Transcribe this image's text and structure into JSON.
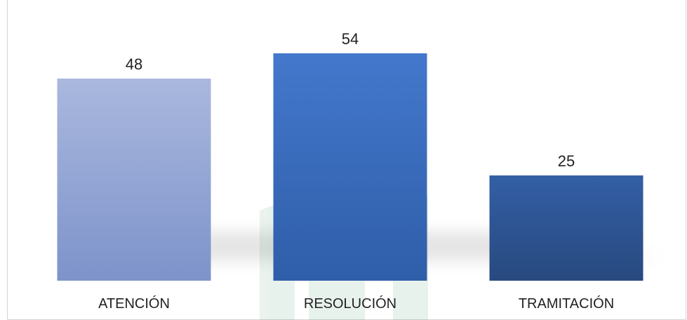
{
  "chart_data": {
    "type": "bar",
    "title": "",
    "categories": [
      "ATENCIÓN",
      "RESOLUCIÓN",
      "TRAMITACIÓN"
    ],
    "values": [
      48,
      54,
      25
    ],
    "xlabel": "",
    "ylabel": "",
    "ylim": [
      0,
      60
    ],
    "grid": false,
    "legend": "none",
    "colors": [
      {
        "top": "#aab8de",
        "bottom": "#7d93ca"
      },
      {
        "top": "#4378cc",
        "bottom": "#2f5ea9"
      },
      {
        "top": "#335fa5",
        "bottom": "#28497f"
      }
    ]
  }
}
